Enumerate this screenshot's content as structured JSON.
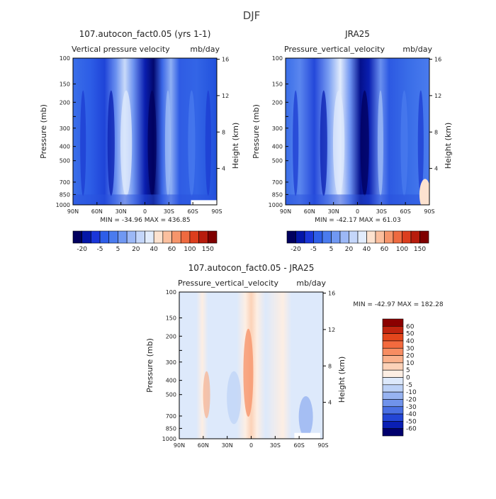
{
  "figure_title": "DJF",
  "chart_data": [
    {
      "type": "heatmap",
      "title": "107.autocon_fact0.05 (yrs 1-1)",
      "subtitle_left": "Vertical pressure velocity",
      "subtitle_right": "mb/day",
      "ylabel": "Pressure (mb)",
      "ylabel_right": "Height (km)",
      "x_ticks": [
        "90N",
        "60N",
        "30N",
        "0",
        "30S",
        "60S",
        "90S"
      ],
      "y_ticks": [
        "100",
        "150",
        "200",
        "250",
        "300",
        "400",
        "500",
        "700",
        "850",
        "1000"
      ],
      "y_ticks_right": [
        "16",
        "12",
        "8",
        "4"
      ],
      "stats": "MIN = -34.96   MAX = 436.85",
      "colorbar_labels": [
        "-20",
        "-5",
        "5",
        "20",
        "40",
        "60",
        "100",
        "150"
      ],
      "colorbar_colors": [
        "#01005e",
        "#0416a8",
        "#1a36d9",
        "#2e5ee8",
        "#4a7bee",
        "#7098f2",
        "#9cb8f6",
        "#c4d6fa",
        "#e2ecfc",
        "#fde2cf",
        "#fbbf9e",
        "#f6956b",
        "#ee6a40",
        "#dc3e1e",
        "#b71c0d",
        "#7f0000"
      ],
      "contour_levels": [
        -25,
        -20,
        -15,
        -10,
        -5,
        0,
        5,
        10,
        15,
        20,
        30,
        40,
        60,
        80,
        100,
        150
      ],
      "ylim": [
        1000,
        100
      ]
    },
    {
      "type": "heatmap",
      "title": "JRA25",
      "subtitle_left": "Pressure_vertical_velocity",
      "subtitle_right": "mb/day",
      "ylabel": "Pressure (mb)",
      "ylabel_right": "Height (km)",
      "x_ticks": [
        "90N",
        "60N",
        "30N",
        "0",
        "30S",
        "60S",
        "90S"
      ],
      "y_ticks": [
        "100",
        "150",
        "200",
        "250",
        "300",
        "400",
        "500",
        "700",
        "850",
        "1000"
      ],
      "y_ticks_right": [
        "16",
        "12",
        "8",
        "4"
      ],
      "stats": "MIN = -42.17   MAX = 61.03",
      "colorbar_labels": [
        "-20",
        "-5",
        "5",
        "20",
        "40",
        "60",
        "100",
        "150"
      ],
      "colorbar_colors": [
        "#01005e",
        "#0416a8",
        "#1a36d9",
        "#2e5ee8",
        "#4a7bee",
        "#7098f2",
        "#9cb8f6",
        "#c4d6fa",
        "#e2ecfc",
        "#fde2cf",
        "#fbbf9e",
        "#f6956b",
        "#ee6a40",
        "#dc3e1e",
        "#b71c0d",
        "#7f0000"
      ],
      "ylim": [
        1000,
        100
      ]
    },
    {
      "type": "heatmap",
      "title": "107.autocon_fact0.05 - JRA25",
      "subtitle_left": "Pressure_vertical_velocity",
      "subtitle_right": "mb/day",
      "ylabel": "Pressure (mb)",
      "ylabel_right": "Height (km)",
      "x_ticks": [
        "90N",
        "60N",
        "30N",
        "0",
        "30S",
        "60S",
        "90S"
      ],
      "y_ticks": [
        "100",
        "150",
        "200",
        "250",
        "300",
        "400",
        "500",
        "700",
        "850",
        "1000"
      ],
      "y_ticks_right": [
        "16",
        "12",
        "8",
        "4"
      ],
      "stats": "MIN = -42.97   MAX = 182.28",
      "colorbar_labels": [
        "60",
        "50",
        "40",
        "30",
        "20",
        "10",
        "5",
        "0",
        "-5",
        "-10",
        "-20",
        "-30",
        "-40",
        "-50",
        "-60"
      ],
      "colorbar_colors": [
        "#8b0000",
        "#c1240f",
        "#e4461c",
        "#f36a3e",
        "#f78d62",
        "#fab18c",
        "#fcd2b8",
        "#fdeee3",
        "#dde9fb",
        "#bcd1f6",
        "#97b3f1",
        "#7093eb",
        "#4a70e3",
        "#2346d6",
        "#0a1fb4",
        "#01006e"
      ],
      "ylim": [
        1000,
        100
      ]
    }
  ]
}
